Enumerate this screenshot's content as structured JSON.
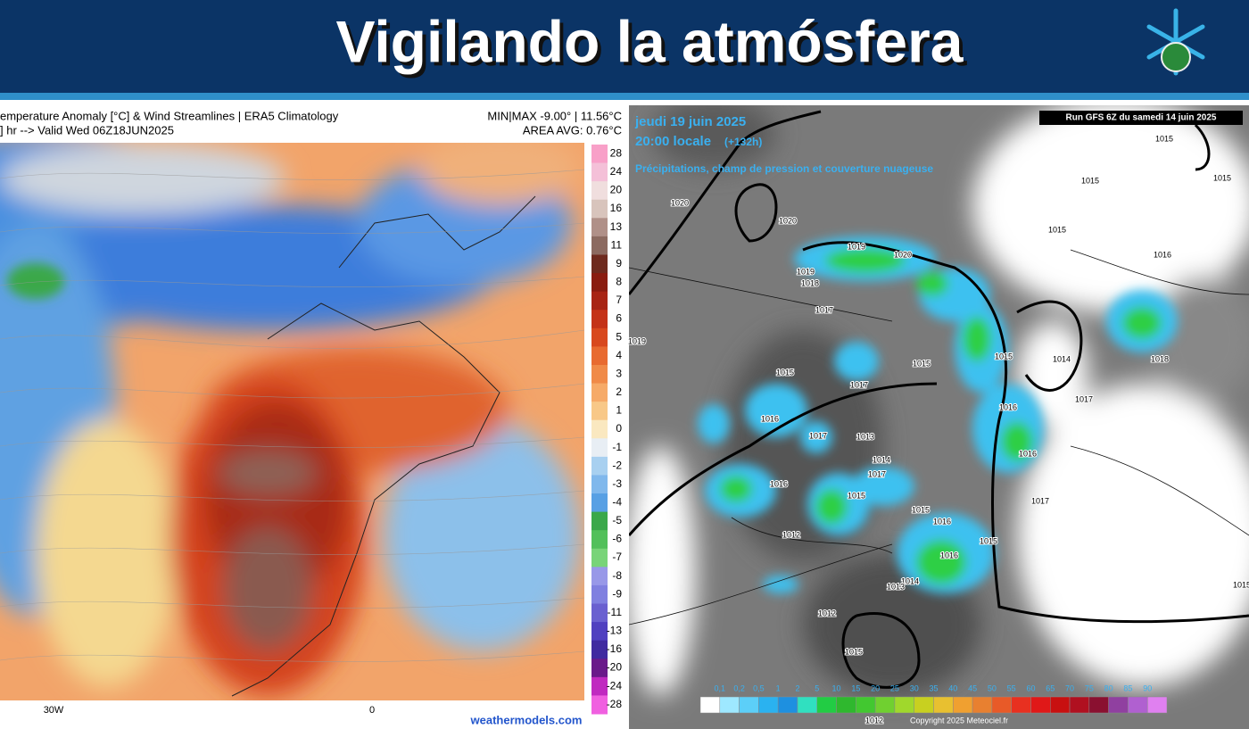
{
  "header": {
    "title": "Vigilando la atmósfera"
  },
  "left_map": {
    "title_line1": "emperature Anomaly [°C] & Wind Streamlines | ERA5 Climatology",
    "title_line2": "] hr --> Valid Wed 06Z18JUN2025",
    "minmax": "MIN|MAX -9.00° | 11.56°C",
    "area_avg": "AREA AVG: 0.76°C",
    "colorbar_labels": [
      "28",
      "24",
      "20",
      "16",
      "13",
      "11",
      "9",
      "8",
      "7",
      "6",
      "5",
      "4",
      "3",
      "2",
      "1",
      "0",
      "-1",
      "-2",
      "-3",
      "-4",
      "-5",
      "-6",
      "-7",
      "-8",
      "-9",
      "-11",
      "-13",
      "-16",
      "-20",
      "-24",
      "-28"
    ],
    "lon_labels": [
      "30W",
      "0"
    ],
    "credit": "weathermodels.com"
  },
  "right_map": {
    "date": "jeudi 19 juin 2025",
    "time": "20:00 locale",
    "offset": "(+132h)",
    "subtitle": "Précipitations, champ de pression et couverture nuageuse",
    "run": "Run GFS 6Z du samedi 14 juin 2025",
    "scale_labels": [
      "0,1",
      "0,2",
      "0,5",
      "1",
      "2",
      "5",
      "10",
      "15",
      "20",
      "25",
      "30",
      "35",
      "40",
      "45",
      "50",
      "55",
      "60",
      "65",
      "70",
      "75",
      "80",
      "85",
      "90"
    ],
    "copyright": "Copyright 2025 Meteociel.fr",
    "isobar_labels": [
      "1020",
      "1020",
      "1019",
      "1018",
      "1017",
      "1019",
      "1015",
      "1017",
      "1016",
      "1017",
      "1013",
      "1014",
      "1016",
      "1015",
      "1015",
      "1016",
      "1015",
      "1016",
      "1012",
      "1014",
      "1012",
      "1015",
      "1012",
      "1015",
      "1015",
      "1015",
      "1015",
      "1016",
      "1014",
      "1018",
      "1017",
      "1016",
      "1016",
      "1017",
      "1015",
      "1015",
      "1017",
      "1019",
      "1020",
      "1013",
      "1015"
    ]
  }
}
